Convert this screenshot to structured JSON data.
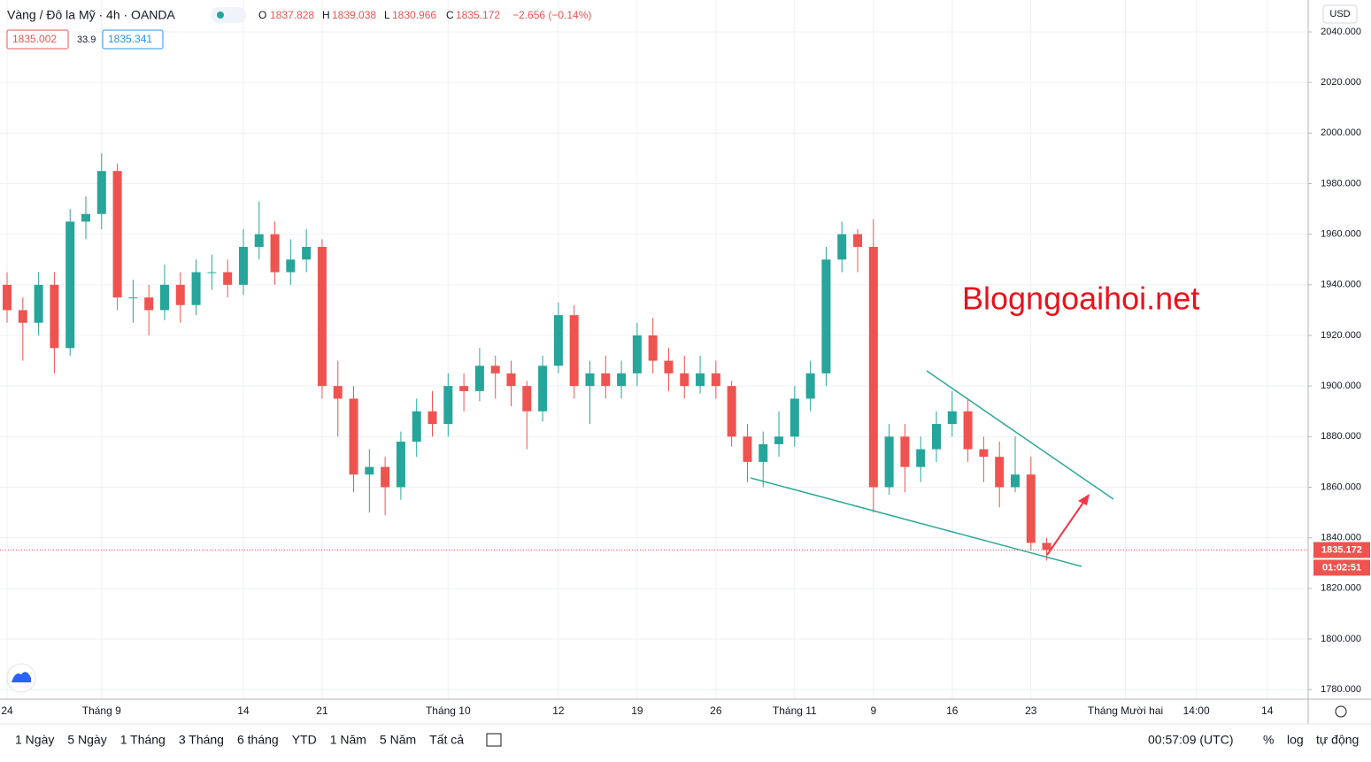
{
  "header": {
    "symbol": "Vàng / Đô la Mỹ · 4h · OANDA",
    "o_label": "O",
    "o": "1837.828",
    "h_label": "H",
    "h": "1839.038",
    "l_label": "L",
    "l": "1830.966",
    "c_label": "C",
    "c": "1835.172",
    "change": "−2.656 (−0.14%)",
    "bid": "1835.002",
    "spread": "33.9",
    "ask": "1835.341",
    "currency": "USD"
  },
  "watermark": "Blogngoaihoi.net",
  "toolbar": {
    "ranges": [
      "1 Ngày",
      "5 Ngày",
      "1 Tháng",
      "3 Tháng",
      "6 tháng",
      "YTD",
      "1 Năm",
      "5 Năm",
      "Tất cả"
    ],
    "clock": "00:57:09 (UTC)",
    "percent": "%",
    "log": "log",
    "auto": "tự động"
  },
  "chart_data": {
    "type": "candlestick",
    "up_color": "#26a69a",
    "down_color": "#ef5350",
    "categories": [
      null,
      null,
      null,
      null,
      null,
      null,
      null,
      null,
      null,
      null,
      null,
      null,
      null,
      null,
      null,
      null,
      null,
      null,
      null,
      null,
      null,
      null,
      null,
      null,
      null,
      null,
      null,
      null,
      null,
      null,
      null,
      null,
      null,
      null,
      null,
      null,
      null,
      null,
      null,
      null,
      null,
      null,
      null,
      null,
      null,
      null,
      null,
      null,
      null,
      null,
      null,
      null,
      null,
      null,
      null,
      null,
      null,
      null,
      null,
      null,
      null,
      null,
      null,
      null,
      null,
      null,
      null
    ],
    "open": [
      1940,
      1930,
      1925,
      1940,
      1915,
      1965,
      1968,
      1985,
      1935,
      1935,
      1930,
      1940,
      1932,
      1945,
      1945,
      1940,
      1955,
      1960,
      1945,
      1950,
      1955,
      1900,
      1895,
      1865,
      1868,
      1860,
      1878,
      1890,
      1885,
      1900,
      1898,
      1908,
      1905,
      1900,
      1890,
      1908,
      1928,
      1900,
      1905,
      1900,
      1905,
      1920,
      1910,
      1905,
      1900,
      1905,
      1900,
      1880,
      1870,
      1877,
      1880,
      1895,
      1905,
      1950,
      1960,
      1955,
      1860,
      1880,
      1868,
      1875,
      1885,
      1890,
      1875,
      1872,
      1860,
      1865,
      1838
    ],
    "high": [
      1945,
      1935,
      1945,
      1945,
      1970,
      1975,
      1992,
      1988,
      1942,
      1940,
      1948,
      1945,
      1950,
      1952,
      1950,
      1962,
      1973,
      1965,
      1958,
      1962,
      1958,
      1910,
      1900,
      1875,
      1872,
      1882,
      1895,
      1898,
      1905,
      1905,
      1915,
      1912,
      1910,
      1902,
      1912,
      1933,
      1932,
      1910,
      1912,
      1910,
      1925,
      1927,
      1915,
      1912,
      1912,
      1910,
      1902,
      1885,
      1882,
      1890,
      1900,
      1910,
      1955,
      1965,
      1962,
      1966,
      1885,
      1885,
      1880,
      1890,
      1898,
      1895,
      1880,
      1878,
      1880,
      1872,
      1840
    ],
    "low": [
      1925,
      1910,
      1920,
      1905,
      1912,
      1958,
      1962,
      1930,
      1925,
      1920,
      1926,
      1925,
      1928,
      1938,
      1935,
      1936,
      1950,
      1940,
      1940,
      1945,
      1895,
      1880,
      1858,
      1850,
      1849,
      1855,
      1872,
      1880,
      1880,
      1890,
      1894,
      1895,
      1892,
      1875,
      1886,
      1905,
      1895,
      1885,
      1895,
      1895,
      1900,
      1905,
      1898,
      1895,
      1897,
      1895,
      1876,
      1862,
      1860,
      1872,
      1876,
      1890,
      1900,
      1945,
      1945,
      1850,
      1857,
      1858,
      1862,
      1870,
      1880,
      1870,
      1862,
      1852,
      1858,
      1835,
      1830.966
    ],
    "close": [
      1930,
      1925,
      1940,
      1915,
      1965,
      1968,
      1985,
      1935,
      1935,
      1930,
      1940,
      1932,
      1945,
      1945,
      1940,
      1955,
      1960,
      1945,
      1950,
      1955,
      1900,
      1895,
      1865,
      1868,
      1860,
      1878,
      1890,
      1885,
      1900,
      1898,
      1908,
      1905,
      1900,
      1890,
      1908,
      1928,
      1900,
      1905,
      1900,
      1905,
      1920,
      1910,
      1905,
      1900,
      1905,
      1900,
      1880,
      1870,
      1877,
      1880,
      1895,
      1905,
      1950,
      1960,
      1955,
      1860,
      1880,
      1868,
      1875,
      1885,
      1890,
      1875,
      1872,
      1860,
      1865,
      1838,
      1835.172
    ],
    "last_price": 1835.172,
    "countdown": "01:02:51",
    "xlim": [
      -0.45,
      82.6
    ],
    "xticks": [
      {
        "value": 0,
        "label": "24"
      },
      {
        "value": 6,
        "label": "Tháng 9"
      },
      {
        "value": 15,
        "label": "14"
      },
      {
        "value": 20,
        "label": "21"
      },
      {
        "value": 28,
        "label": "Tháng 10"
      },
      {
        "value": 35,
        "label": "12"
      },
      {
        "value": 40,
        "label": "19"
      },
      {
        "value": 45,
        "label": "26"
      },
      {
        "value": 50,
        "label": "Tháng 11"
      },
      {
        "value": 55,
        "label": "9"
      },
      {
        "value": 60,
        "label": "16"
      },
      {
        "value": 65,
        "label": "23"
      },
      {
        "value": 71,
        "label": "Tháng Mười hai"
      },
      {
        "value": 75.5,
        "label": "14:00"
      },
      {
        "value": 80,
        "label": "14"
      }
    ],
    "ylim": [
      1776.2,
      2052.6
    ],
    "yticks": [
      {
        "value": 1780,
        "label": "1780.000"
      },
      {
        "value": 1800,
        "label": "1800.000"
      },
      {
        "value": 1820,
        "label": "1820.000"
      },
      {
        "value": 1840,
        "label": "1840.000"
      },
      {
        "value": 1860,
        "label": "1860.000"
      },
      {
        "value": 1880,
        "label": "1880.000"
      },
      {
        "value": 1900,
        "label": "1900.000"
      },
      {
        "value": 1920,
        "label": "1920.000"
      },
      {
        "value": 1940,
        "label": "1940.000"
      },
      {
        "value": 1960,
        "label": "1960.000"
      },
      {
        "value": 1980,
        "label": "1980.000"
      },
      {
        "value": 2000,
        "label": "2000.000"
      },
      {
        "value": 2020,
        "label": "2020.000"
      },
      {
        "value": 2040,
        "label": "2040.000"
      }
    ],
    "grid": true
  }
}
